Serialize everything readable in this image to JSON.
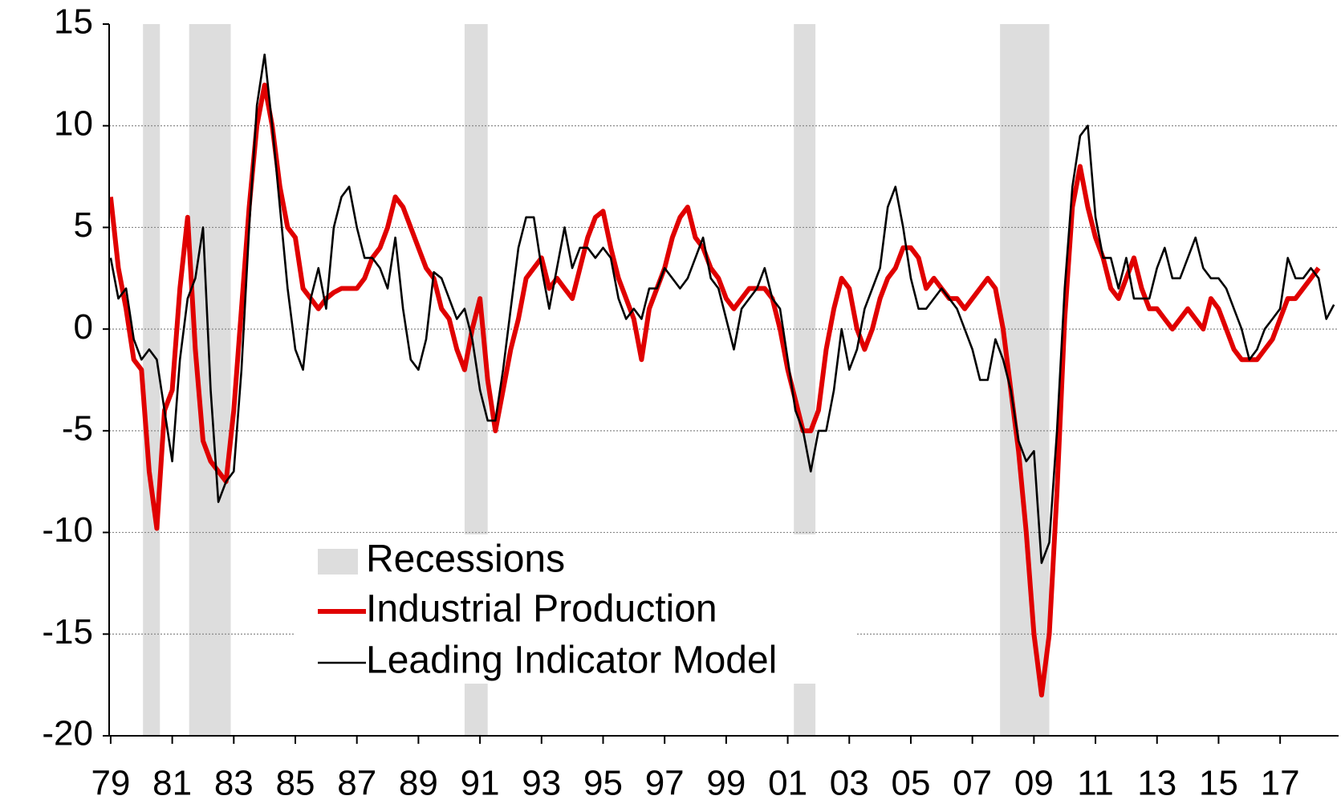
{
  "chart_data": {
    "type": "line",
    "x": [
      1979,
      1979.25,
      1979.5,
      1979.75,
      1980,
      1980.25,
      1980.5,
      1980.75,
      1981,
      1981.25,
      1981.5,
      1981.75,
      1982,
      1982.25,
      1982.5,
      1982.75,
      1983,
      1983.25,
      1983.5,
      1983.75,
      1984,
      1984.25,
      1984.5,
      1984.75,
      1985,
      1985.25,
      1985.5,
      1985.75,
      1986,
      1986.25,
      1986.5,
      1986.75,
      1987,
      1987.25,
      1987.5,
      1987.75,
      1988,
      1988.25,
      1988.5,
      1988.75,
      1989,
      1989.25,
      1989.5,
      1989.75,
      1990,
      1990.25,
      1990.5,
      1990.75,
      1991,
      1991.25,
      1991.5,
      1991.75,
      1992,
      1992.25,
      1992.5,
      1992.75,
      1993,
      1993.25,
      1993.5,
      1993.75,
      1994,
      1994.25,
      1994.5,
      1994.75,
      1995,
      1995.25,
      1995.5,
      1995.75,
      1996,
      1996.25,
      1996.5,
      1996.75,
      1997,
      1997.25,
      1997.5,
      1997.75,
      1998,
      1998.25,
      1998.5,
      1998.75,
      1999,
      1999.25,
      1999.5,
      1999.75,
      2000,
      2000.25,
      2000.5,
      2000.75,
      2001,
      2001.25,
      2001.5,
      2001.75,
      2002,
      2002.25,
      2002.5,
      2002.75,
      2003,
      2003.25,
      2003.5,
      2003.75,
      2004,
      2004.25,
      2004.5,
      2004.75,
      2005,
      2005.25,
      2005.5,
      2005.75,
      2006,
      2006.25,
      2006.5,
      2006.75,
      2007,
      2007.25,
      2007.5,
      2007.75,
      2008,
      2008.25,
      2008.5,
      2008.75,
      2009,
      2009.25,
      2009.5,
      2009.75,
      2010,
      2010.25,
      2010.5,
      2010.75,
      2011,
      2011.25,
      2011.5,
      2011.75,
      2012,
      2012.25,
      2012.5,
      2012.75,
      2013,
      2013.25,
      2013.5,
      2013.75,
      2014,
      2014.25,
      2014.5,
      2014.75,
      2015,
      2015.25,
      2015.5,
      2015.75,
      2016,
      2016.25,
      2016.5,
      2016.75,
      2017,
      2017.25,
      2017.5,
      2017.75,
      2018,
      2018.25,
      2018.5,
      2018.75
    ],
    "series": [
      {
        "name": "Industrial Production",
        "color": "#e00000",
        "values": [
          6.5,
          3,
          1,
          -1.5,
          -2,
          -7,
          -9.8,
          -4,
          -3,
          2,
          5.5,
          -1,
          -5.5,
          -6.5,
          -7,
          -7.5,
          -4,
          1,
          6,
          10,
          12,
          10,
          7,
          5,
          4.5,
          2,
          1.5,
          1,
          1.5,
          1.8,
          2,
          2,
          2,
          2.5,
          3.5,
          4,
          5,
          6.5,
          6,
          5,
          4,
          3,
          2.5,
          1,
          0.5,
          -1,
          -2,
          0,
          1.5,
          -2.5,
          -5,
          -3,
          -1,
          0.5,
          2.5,
          3,
          3.5,
          2,
          2.5,
          2,
          1.5,
          3,
          4.5,
          5.5,
          5.8,
          4,
          2.5,
          1.5,
          0.5,
          -1.5,
          1,
          2,
          3,
          4.5,
          5.5,
          6,
          4.5,
          4,
          3,
          2.5,
          1.5,
          1,
          1.5,
          2,
          2,
          2,
          1.5,
          0,
          -2,
          -3.5,
          -5,
          -5,
          -4,
          -1,
          1,
          2.5,
          2,
          0,
          -1,
          0,
          1.5,
          2.5,
          3,
          4,
          4,
          3.5,
          2,
          2.5,
          2,
          1.5,
          1.5,
          1,
          1.5,
          2,
          2.5,
          2,
          0,
          -3,
          -6,
          -10,
          -15,
          -18,
          -15,
          -8,
          0.5,
          6,
          8,
          6,
          4.5,
          3.5,
          2,
          1.5,
          2.5,
          3.5,
          2,
          1,
          1,
          0.5,
          0,
          0.5,
          1,
          0.5,
          0,
          1.5,
          1,
          0,
          -1,
          -1.5,
          -1.5,
          -1.5,
          -1,
          -0.5,
          0.5,
          1.5,
          1.5,
          2,
          2.5,
          3,
          null,
          null
        ]
      },
      {
        "name": "Leading Indicator Model",
        "color": "#000000",
        "values": [
          3.5,
          1.5,
          2,
          -0.5,
          -1.5,
          -1,
          -1.5,
          -4,
          -6.5,
          -1.5,
          1.5,
          2.5,
          5,
          -3,
          -8.5,
          -7.5,
          -7,
          -2,
          5,
          11,
          13.5,
          10,
          6,
          2,
          -1,
          -2,
          1.5,
          3,
          1,
          5,
          6.5,
          7,
          5,
          3.5,
          3.5,
          3,
          2,
          4.5,
          1,
          -1.5,
          -2,
          -0.5,
          2.8,
          2.5,
          1.5,
          0.5,
          1,
          -0.5,
          -3,
          -4.5,
          -4.5,
          -2,
          1,
          4,
          5.5,
          5.5,
          3,
          1,
          3,
          5,
          3,
          4,
          4,
          3.5,
          4,
          3.5,
          1.5,
          0.5,
          1,
          0.5,
          2,
          2,
          3,
          2.5,
          2,
          2.5,
          3.5,
          4.5,
          2.5,
          2,
          0.5,
          -1,
          1,
          1.5,
          2,
          3,
          1.5,
          1,
          -1.5,
          -4,
          -5,
          -7,
          -5,
          -5,
          -3,
          0,
          -2,
          -1,
          1,
          2,
          3,
          6,
          7,
          5,
          2.5,
          1,
          1,
          1.5,
          2,
          1.5,
          1,
          0,
          -1,
          -2.5,
          -2.5,
          -0.5,
          -1.5,
          -3,
          -5.5,
          -6.5,
          -6,
          -11.5,
          -10.5,
          -5,
          2,
          7,
          9.5,
          10,
          5.5,
          3.5,
          3.5,
          2,
          3.5,
          1.5,
          1.5,
          1.5,
          3,
          4,
          2.5,
          2.5,
          3.5,
          4.5,
          3,
          2.5,
          2.5,
          2,
          1,
          0,
          -1.5,
          -1,
          0,
          0.5,
          1,
          3.5,
          2.5,
          2.5,
          3,
          2.5,
          0.5,
          1.2
        ]
      }
    ],
    "recessions": {
      "name": "Recessions",
      "color": "#dddddd",
      "periods": [
        [
          1980.05,
          1980.6
        ],
        [
          1981.55,
          1982.9
        ],
        [
          1990.5,
          1991.25
        ],
        [
          2001.2,
          2001.9
        ],
        [
          2007.9,
          2009.5
        ]
      ]
    },
    "xlim": [
      1978.95,
      2018.9
    ],
    "xticks": [
      {
        "value": 1979,
        "label": "79"
      },
      {
        "value": 1981,
        "label": "81"
      },
      {
        "value": 1983,
        "label": "83"
      },
      {
        "value": 1985,
        "label": "85"
      },
      {
        "value": 1987,
        "label": "87"
      },
      {
        "value": 1989,
        "label": "89"
      },
      {
        "value": 1991,
        "label": "91"
      },
      {
        "value": 1993,
        "label": "93"
      },
      {
        "value": 1995,
        "label": "95"
      },
      {
        "value": 1997,
        "label": "97"
      },
      {
        "value": 1999,
        "label": "99"
      },
      {
        "value": 2001,
        "label": "01"
      },
      {
        "value": 2003,
        "label": "03"
      },
      {
        "value": 2005,
        "label": "05"
      },
      {
        "value": 2007,
        "label": "07"
      },
      {
        "value": 2009,
        "label": "09"
      },
      {
        "value": 2011,
        "label": "11"
      },
      {
        "value": 2013,
        "label": "13"
      },
      {
        "value": 2015,
        "label": "15"
      },
      {
        "value": 2017,
        "label": "17"
      }
    ],
    "ylim": [
      -20,
      15
    ],
    "yticks": [
      -20,
      -15,
      -10,
      -5,
      0,
      5,
      10,
      15
    ],
    "grid": true
  }
}
